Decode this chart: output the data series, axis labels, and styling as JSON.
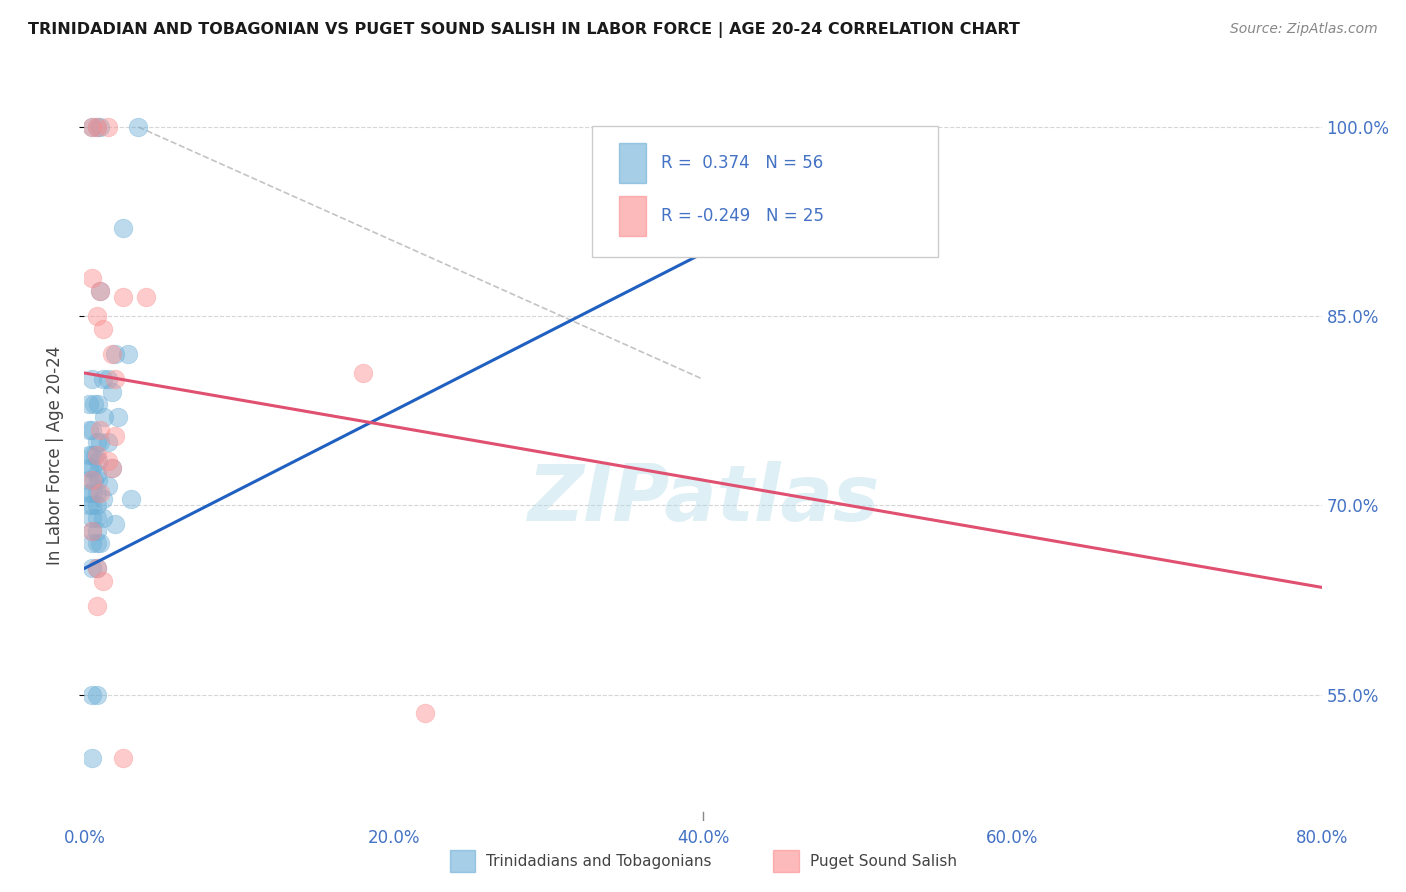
{
  "title": "TRINIDADIAN AND TOBAGONIAN VS PUGET SOUND SALISH IN LABOR FORCE | AGE 20-24 CORRELATION CHART",
  "source": "Source: ZipAtlas.com",
  "ylabel": "In Labor Force | Age 20-24",
  "xlim": [
    0.0,
    80.0
  ],
  "ylim": [
    45.0,
    103.0
  ],
  "yticks": [
    55.0,
    70.0,
    85.0,
    100.0
  ],
  "xticks": [
    0.0,
    20.0,
    40.0,
    60.0,
    80.0
  ],
  "blue_R": 0.374,
  "blue_N": 56,
  "pink_R": -0.249,
  "pink_N": 25,
  "blue_label": "Trinidadians and Tobagonians",
  "pink_label": "Puget Sound Salish",
  "blue_color": "#6baed6",
  "pink_color": "#fc8d8d",
  "blue_scatter": [
    [
      0.5,
      100.0
    ],
    [
      0.8,
      100.0
    ],
    [
      1.0,
      100.0
    ],
    [
      3.5,
      100.0
    ],
    [
      2.5,
      92.0
    ],
    [
      1.0,
      87.0
    ],
    [
      2.0,
      82.0
    ],
    [
      2.8,
      82.0
    ],
    [
      0.5,
      80.0
    ],
    [
      1.2,
      80.0
    ],
    [
      1.5,
      80.0
    ],
    [
      1.8,
      79.0
    ],
    [
      0.3,
      78.0
    ],
    [
      0.6,
      78.0
    ],
    [
      0.9,
      78.0
    ],
    [
      1.3,
      77.0
    ],
    [
      2.2,
      77.0
    ],
    [
      0.3,
      76.0
    ],
    [
      0.5,
      76.0
    ],
    [
      0.8,
      75.0
    ],
    [
      1.0,
      75.0
    ],
    [
      1.5,
      75.0
    ],
    [
      0.3,
      74.0
    ],
    [
      0.5,
      74.0
    ],
    [
      0.7,
      74.0
    ],
    [
      0.9,
      73.5
    ],
    [
      1.8,
      73.0
    ],
    [
      0.3,
      73.0
    ],
    [
      0.5,
      73.0
    ],
    [
      0.8,
      72.5
    ],
    [
      0.3,
      72.0
    ],
    [
      0.6,
      72.0
    ],
    [
      0.9,
      72.0
    ],
    [
      1.5,
      71.5
    ],
    [
      0.3,
      71.0
    ],
    [
      0.5,
      71.0
    ],
    [
      0.8,
      71.0
    ],
    [
      1.2,
      70.5
    ],
    [
      3.0,
      70.5
    ],
    [
      0.3,
      70.0
    ],
    [
      0.5,
      70.0
    ],
    [
      0.8,
      70.0
    ],
    [
      0.5,
      69.0
    ],
    [
      0.8,
      69.0
    ],
    [
      1.2,
      69.0
    ],
    [
      2.0,
      68.5
    ],
    [
      0.5,
      68.0
    ],
    [
      0.8,
      68.0
    ],
    [
      0.5,
      67.0
    ],
    [
      0.8,
      67.0
    ],
    [
      1.0,
      67.0
    ],
    [
      0.5,
      65.0
    ],
    [
      0.8,
      65.0
    ],
    [
      0.5,
      55.0
    ],
    [
      0.8,
      55.0
    ],
    [
      0.5,
      50.0
    ]
  ],
  "pink_scatter": [
    [
      0.5,
      100.0
    ],
    [
      0.8,
      100.0
    ],
    [
      1.5,
      100.0
    ],
    [
      0.5,
      88.0
    ],
    [
      1.0,
      87.0
    ],
    [
      2.5,
      86.5
    ],
    [
      4.0,
      86.5
    ],
    [
      0.8,
      85.0
    ],
    [
      1.2,
      84.0
    ],
    [
      1.8,
      82.0
    ],
    [
      2.0,
      80.0
    ],
    [
      1.0,
      76.0
    ],
    [
      2.0,
      75.5
    ],
    [
      0.8,
      74.0
    ],
    [
      1.5,
      73.5
    ],
    [
      1.8,
      73.0
    ],
    [
      0.5,
      72.0
    ],
    [
      1.0,
      71.0
    ],
    [
      0.8,
      65.0
    ],
    [
      1.2,
      64.0
    ],
    [
      18.0,
      80.5
    ],
    [
      22.0,
      53.5
    ],
    [
      2.5,
      50.0
    ],
    [
      0.5,
      68.0
    ],
    [
      0.8,
      62.0
    ]
  ],
  "blue_line_x": [
    0.0,
    40.0
  ],
  "blue_line_y": [
    65.0,
    90.0
  ],
  "pink_line_x": [
    0.0,
    80.0
  ],
  "pink_line_y": [
    80.5,
    63.5
  ],
  "diag_line_x": [
    3.5,
    40.0
  ],
  "diag_line_y": [
    100.0,
    80.0
  ],
  "watermark": "ZIPatlas",
  "watermark_color": "#add8e6",
  "bg_color": "#ffffff",
  "grid_color": "#cccccc"
}
